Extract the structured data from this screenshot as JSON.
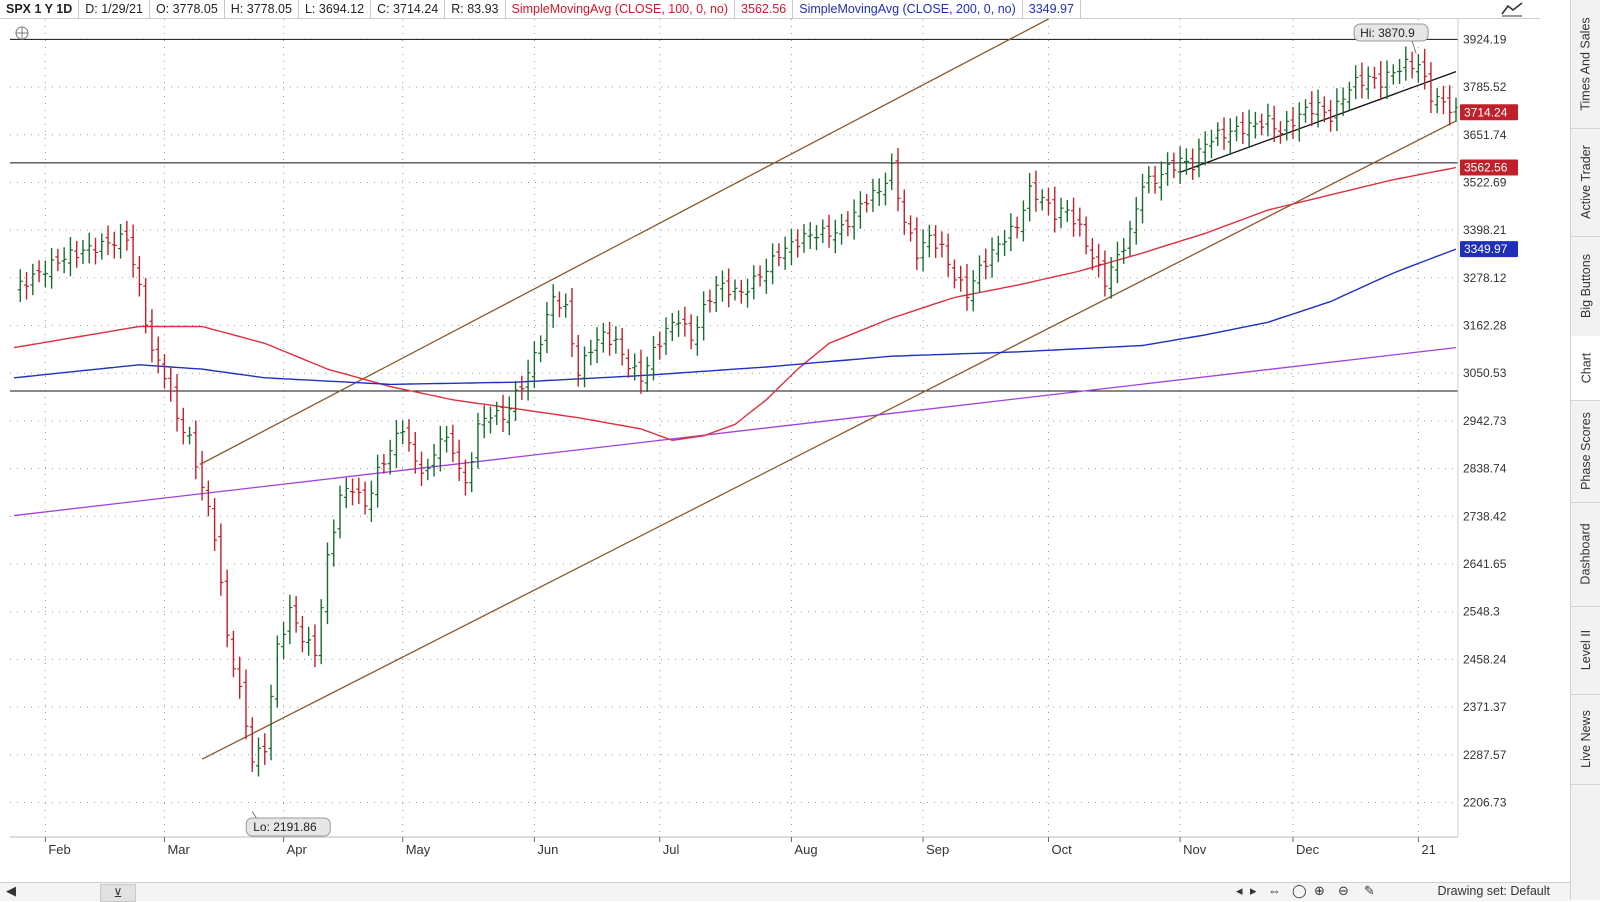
{
  "header": {
    "symbol": "SPX 1 Y 1D",
    "date": "D: 1/29/21",
    "open": "O: 3778.05",
    "high": "H: 3778.05",
    "low": "L: 3694.12",
    "close": "C: 3714.24",
    "range": "R: 83.93",
    "sma100_label": "SimpleMovingAvg (CLOSE, 100, 0, no)",
    "sma100_value": "3562.56",
    "sma200_label": "SimpleMovingAvg (CLOSE, 200, 0, no)",
    "sma200_value": "3349.97"
  },
  "right_panel": {
    "tabs": [
      "Times And Sales",
      "Active Trader",
      "Big Buttons",
      "Chart",
      "Phase Scores",
      "Dashboard",
      "Level II",
      "Live News"
    ],
    "active_tab": "Chart"
  },
  "bottom_bar": {
    "drawing_set": "Drawing set: Default"
  },
  "colors": {
    "up_bar": "#1a6b2e",
    "down_bar": "#c0202a",
    "sma100": "#e03040",
    "sma200": "#2030c0",
    "channel": "#8b5a2b",
    "trend_purple": "#a040e0",
    "price_badge": "#c0202a",
    "sma200_badge": "#1f2fb8"
  },
  "chart_data": {
    "type": "candlestick",
    "title": "SPX 1 Y 1D",
    "x_ticks": [
      "Feb",
      "Mar",
      "Apr",
      "May",
      "Jun",
      "Jul",
      "Aug",
      "Sep",
      "Oct",
      "Nov",
      "Dec",
      "21"
    ],
    "y_ticks": [
      "3924.19",
      "3785.52",
      "3651.74",
      "3522.69",
      "3398.21",
      "3278.12",
      "3162.28",
      "3050.53",
      "2942.73",
      "2838.74",
      "2738.42",
      "2641.65",
      "2548.3",
      "2458.24",
      "2371.37",
      "2287.57",
      "2206.73"
    ],
    "y_scale": "log",
    "ylim": [
      2150,
      3985
    ],
    "grid": true,
    "hi_label": "Hi: 3870.9",
    "lo_label": "Lo: 2191.86",
    "current_price": "3714.24",
    "sma100_value": "3562.56",
    "sma200_value": "3349.97",
    "close_anchors": [
      [
        0,
        3250
      ],
      [
        8,
        3330
      ],
      [
        16,
        3370
      ],
      [
        18,
        3380
      ],
      [
        20,
        3250
      ],
      [
        22,
        3100
      ],
      [
        24,
        3050
      ],
      [
        26,
        2950
      ],
      [
        28,
        2900
      ],
      [
        30,
        2800
      ],
      [
        32,
        2700
      ],
      [
        34,
        2500
      ],
      [
        36,
        2400
      ],
      [
        38,
        2280
      ],
      [
        40,
        2300
      ],
      [
        42,
        2480
      ],
      [
        44,
        2550
      ],
      [
        46,
        2500
      ],
      [
        48,
        2470
      ],
      [
        50,
        2650
      ],
      [
        52,
        2780
      ],
      [
        54,
        2800
      ],
      [
        56,
        2760
      ],
      [
        58,
        2830
      ],
      [
        60,
        2880
      ],
      [
        62,
        2930
      ],
      [
        64,
        2850
      ],
      [
        66,
        2830
      ],
      [
        68,
        2910
      ],
      [
        70,
        2880
      ],
      [
        72,
        2800
      ],
      [
        74,
        2930
      ],
      [
        76,
        2960
      ],
      [
        78,
        2950
      ],
      [
        80,
        3000
      ],
      [
        82,
        3050
      ],
      [
        84,
        3130
      ],
      [
        86,
        3230
      ],
      [
        88,
        3200
      ],
      [
        90,
        3050
      ],
      [
        92,
        3110
      ],
      [
        94,
        3140
      ],
      [
        96,
        3120
      ],
      [
        98,
        3070
      ],
      [
        100,
        3040
      ],
      [
        102,
        3100
      ],
      [
        104,
        3150
      ],
      [
        106,
        3180
      ],
      [
        108,
        3130
      ],
      [
        110,
        3200
      ],
      [
        112,
        3260
      ],
      [
        114,
        3250
      ],
      [
        116,
        3240
      ],
      [
        118,
        3270
      ],
      [
        120,
        3300
      ],
      [
        122,
        3340
      ],
      [
        124,
        3360
      ],
      [
        126,
        3380
      ],
      [
        128,
        3390
      ],
      [
        130,
        3390
      ],
      [
        132,
        3400
      ],
      [
        134,
        3440
      ],
      [
        136,
        3480
      ],
      [
        138,
        3500
      ],
      [
        140,
        3560
      ],
      [
        142,
        3420
      ],
      [
        144,
        3340
      ],
      [
        146,
        3380
      ],
      [
        148,
        3350
      ],
      [
        150,
        3280
      ],
      [
        152,
        3240
      ],
      [
        154,
        3300
      ],
      [
        156,
        3340
      ],
      [
        158,
        3380
      ],
      [
        160,
        3410
      ],
      [
        162,
        3500
      ],
      [
        164,
        3480
      ],
      [
        166,
        3440
      ],
      [
        168,
        3450
      ],
      [
        170,
        3400
      ],
      [
        172,
        3330
      ],
      [
        174,
        3270
      ],
      [
        176,
        3330
      ],
      [
        178,
        3390
      ],
      [
        180,
        3520
      ],
      [
        182,
        3530
      ],
      [
        184,
        3560
      ],
      [
        186,
        3580
      ],
      [
        188,
        3570
      ],
      [
        190,
        3630
      ],
      [
        192,
        3650
      ],
      [
        194,
        3660
      ],
      [
        196,
        3670
      ],
      [
        198,
        3680
      ],
      [
        200,
        3690
      ],
      [
        202,
        3660
      ],
      [
        204,
        3690
      ],
      [
        206,
        3720
      ],
      [
        208,
        3730
      ],
      [
        210,
        3700
      ],
      [
        212,
        3760
      ],
      [
        214,
        3800
      ],
      [
        216,
        3810
      ],
      [
        218,
        3800
      ],
      [
        220,
        3830
      ],
      [
        222,
        3850
      ],
      [
        224,
        3850
      ],
      [
        226,
        3760
      ],
      [
        228,
        3740
      ],
      [
        230,
        3714
      ]
    ],
    "sma100": [
      [
        0,
        3110
      ],
      [
        20,
        3160
      ],
      [
        30,
        3160
      ],
      [
        40,
        3120
      ],
      [
        50,
        3060
      ],
      [
        60,
        3020
      ],
      [
        70,
        2990
      ],
      [
        80,
        2970
      ],
      [
        90,
        2950
      ],
      [
        100,
        2925
      ],
      [
        105,
        2900
      ],
      [
        110,
        2910
      ],
      [
        115,
        2935
      ],
      [
        120,
        2990
      ],
      [
        125,
        3060
      ],
      [
        130,
        3120
      ],
      [
        140,
        3180
      ],
      [
        150,
        3230
      ],
      [
        160,
        3260
      ],
      [
        170,
        3295
      ],
      [
        180,
        3340
      ],
      [
        190,
        3390
      ],
      [
        200,
        3450
      ],
      [
        210,
        3490
      ],
      [
        220,
        3530
      ],
      [
        230,
        3562.56
      ]
    ],
    "sma200": [
      [
        0,
        3040
      ],
      [
        20,
        3070
      ],
      [
        30,
        3060
      ],
      [
        40,
        3040
      ],
      [
        60,
        3025
      ],
      [
        80,
        3030
      ],
      [
        100,
        3045
      ],
      [
        120,
        3065
      ],
      [
        140,
        3090
      ],
      [
        160,
        3100
      ],
      [
        180,
        3115
      ],
      [
        190,
        3140
      ],
      [
        200,
        3170
      ],
      [
        210,
        3220
      ],
      [
        220,
        3290
      ],
      [
        230,
        3349.97
      ]
    ],
    "trendlines": [
      {
        "name": "channel-upper",
        "from": [
          30,
          2850
        ],
        "to": [
          165,
          3985
        ]
      },
      {
        "name": "channel-lower",
        "from": [
          30,
          2280
        ],
        "to": [
          230,
          3690
        ]
      },
      {
        "name": "purple-trend",
        "from": [
          0,
          2740
        ],
        "to": [
          230,
          3110
        ]
      },
      {
        "name": "short-trend",
        "from": [
          186,
          3550
        ],
        "to": [
          230,
          3830
        ]
      }
    ],
    "horizontal_lines": [
      3924.19,
      3575,
      3010
    ]
  }
}
